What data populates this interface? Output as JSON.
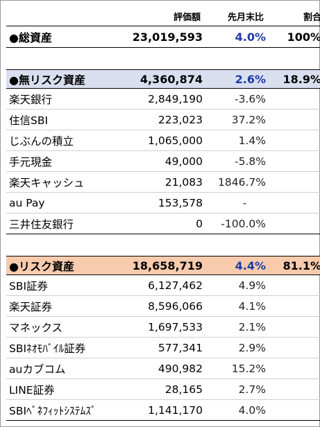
{
  "header": {
    "col_value": "評価額",
    "col_change": "先月末比",
    "col_ratio": "割合"
  },
  "colors": {
    "riskfree_bg": "#dadff0",
    "risk_bg": "#f8cbad",
    "pct_blue": "#1f3aa6"
  },
  "total": {
    "name": "●総資産",
    "value": "23,019,593",
    "change": "4.0%",
    "ratio": "100%"
  },
  "riskfree": {
    "name": "●無リスク資産",
    "value": "4,360,874",
    "change": "2.6%",
    "ratio": "18.9%",
    "items": [
      {
        "name": "楽天銀行",
        "value": "2,849,190",
        "change": "-3.6%"
      },
      {
        "name": "住信SBI",
        "value": "223,023",
        "change": "37.2%"
      },
      {
        "name": "じぶんの積立",
        "value": "1,065,000",
        "change": "1.4%"
      },
      {
        "name": "手元現金",
        "value": "49,000",
        "change": "-5.8%"
      },
      {
        "name": "楽天キャッシュ",
        "value": "21,083",
        "change": "1846.7%"
      },
      {
        "name": "au Pay",
        "value": "153,578",
        "change": "-"
      },
      {
        "name": "三井住友銀行",
        "value": "0",
        "change": "-100.0%"
      }
    ]
  },
  "risk": {
    "name": "●リスク資産",
    "value": "18,658,719",
    "change": "4.4%",
    "ratio": "81.1%",
    "items": [
      {
        "name": "SBI証券",
        "value": "6,127,462",
        "change": "4.9%"
      },
      {
        "name": "楽天証券",
        "value": "8,596,066",
        "change": "4.1%"
      },
      {
        "name": "マネックス",
        "value": "1,697,533",
        "change": "2.1%"
      },
      {
        "name": "SBIﾈｵﾓﾊﾞｲﾙ証券",
        "value": "577,341",
        "change": "2.9%"
      },
      {
        "name": "auカブコム",
        "value": "490,982",
        "change": "15.2%"
      },
      {
        "name": "LINE証券",
        "value": "28,165",
        "change": "2.7%"
      },
      {
        "name": "SBIﾍﾞﾈﾌｨｯﾄｼｽﾃﾑｽﾞ",
        "value": "1,141,170",
        "change": "4.0%"
      }
    ]
  }
}
